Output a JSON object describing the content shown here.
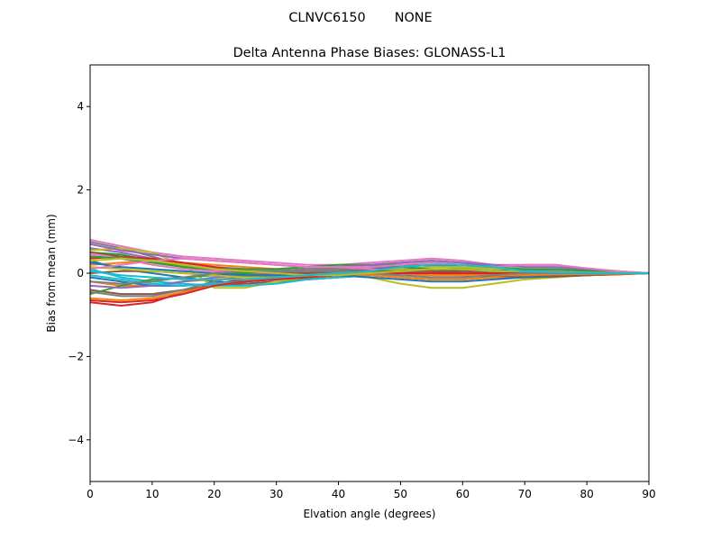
{
  "figure": {
    "suptitle": "CLNVC6150       NONE"
  },
  "chart_data": {
    "type": "line",
    "title": "Delta Antenna Phase Biases: GLONASS-L1",
    "xlabel": "Elvation angle (degrees)",
    "ylabel": "Bias from mean (mm)",
    "xlim": [
      0,
      90
    ],
    "ylim": [
      -5,
      5
    ],
    "xticks": [
      0,
      10,
      20,
      30,
      40,
      50,
      60,
      70,
      80,
      90
    ],
    "yticks": [
      -4,
      -2,
      0,
      2,
      4
    ],
    "ytick_labels": [
      "−4",
      "−2",
      "0",
      "2",
      "4"
    ],
    "grid": false,
    "legend": "none",
    "x": [
      0,
      5,
      10,
      15,
      20,
      25,
      30,
      35,
      40,
      45,
      50,
      55,
      60,
      65,
      70,
      75,
      80,
      85,
      90
    ],
    "series": [
      {
        "color": "#1f77b4",
        "values": [
          0.3,
          0.1,
          0.0,
          -0.1,
          -0.2,
          -0.25,
          -0.2,
          -0.15,
          -0.1,
          -0.05,
          -0.1,
          -0.15,
          -0.15,
          -0.1,
          -0.05,
          0.0,
          0.0,
          0.0,
          0.0
        ]
      },
      {
        "color": "#ff7f0e",
        "values": [
          -0.2,
          -0.3,
          -0.3,
          -0.2,
          -0.15,
          -0.1,
          -0.05,
          0.0,
          0.05,
          0.1,
          0.1,
          0.05,
          0.0,
          -0.05,
          -0.05,
          -0.05,
          -0.05,
          -0.03,
          0.0
        ]
      },
      {
        "color": "#2ca02c",
        "values": [
          0.5,
          0.45,
          0.3,
          0.15,
          0.05,
          0.0,
          0.05,
          0.1,
          0.15,
          0.2,
          0.2,
          0.18,
          0.12,
          0.05,
          0.0,
          -0.02,
          -0.03,
          -0.02,
          0.0
        ]
      },
      {
        "color": "#d62728",
        "values": [
          -0.7,
          -0.78,
          -0.7,
          -0.45,
          -0.25,
          -0.15,
          -0.1,
          -0.05,
          0.0,
          0.05,
          0.05,
          0.05,
          0.0,
          -0.05,
          -0.05,
          -0.05,
          -0.05,
          -0.03,
          0.0
        ]
      },
      {
        "color": "#9467bd",
        "values": [
          0.6,
          0.5,
          0.35,
          0.25,
          0.15,
          0.1,
          0.05,
          0.05,
          0.05,
          0.1,
          0.2,
          0.25,
          0.2,
          0.1,
          0.05,
          0.05,
          0.02,
          0.0,
          0.0
        ]
      },
      {
        "color": "#8c564b",
        "values": [
          -0.4,
          -0.5,
          -0.5,
          -0.4,
          -0.3,
          -0.25,
          -0.2,
          -0.15,
          -0.1,
          -0.05,
          0.0,
          0.0,
          -0.05,
          -0.1,
          -0.1,
          -0.08,
          -0.05,
          -0.02,
          0.0
        ]
      },
      {
        "color": "#e377c2",
        "values": [
          0.8,
          0.65,
          0.5,
          0.4,
          0.35,
          0.3,
          0.25,
          0.2,
          0.2,
          0.25,
          0.3,
          0.35,
          0.3,
          0.2,
          0.2,
          0.2,
          0.1,
          0.05,
          0.0
        ]
      },
      {
        "color": "#7f7f7f",
        "values": [
          0.75,
          0.6,
          0.4,
          0.2,
          0.05,
          -0.05,
          -0.1,
          -0.1,
          -0.05,
          -0.05,
          -0.1,
          -0.15,
          -0.15,
          -0.1,
          -0.05,
          0.0,
          0.0,
          0.0,
          0.0
        ]
      },
      {
        "color": "#bcbd22",
        "values": [
          0.55,
          0.6,
          0.5,
          0.2,
          -0.35,
          -0.35,
          -0.2,
          -0.1,
          -0.05,
          -0.1,
          -0.25,
          -0.35,
          -0.35,
          -0.25,
          -0.15,
          -0.1,
          -0.05,
          -0.02,
          0.0
        ]
      },
      {
        "color": "#17becf",
        "values": [
          0.1,
          -0.1,
          -0.2,
          -0.25,
          -0.3,
          -0.3,
          -0.25,
          -0.15,
          -0.1,
          -0.05,
          -0.05,
          -0.1,
          -0.1,
          -0.05,
          0.0,
          0.0,
          0.0,
          0.0,
          0.0
        ]
      },
      {
        "color": "#1f77b4",
        "values": [
          -0.1,
          -0.2,
          -0.3,
          -0.3,
          -0.25,
          -0.2,
          -0.15,
          -0.1,
          0.0,
          0.1,
          0.15,
          0.2,
          0.15,
          0.1,
          0.05,
          0.05,
          0.03,
          0.01,
          0.0
        ]
      },
      {
        "color": "#ff7f0e",
        "values": [
          0.2,
          0.25,
          0.3,
          0.25,
          0.2,
          0.15,
          0.1,
          0.05,
          0.0,
          -0.05,
          -0.1,
          -0.15,
          -0.15,
          -0.1,
          -0.05,
          -0.05,
          -0.03,
          -0.01,
          0.0
        ]
      },
      {
        "color": "#2ca02c",
        "values": [
          -0.5,
          -0.3,
          -0.15,
          -0.1,
          -0.05,
          0.0,
          0.05,
          0.1,
          0.15,
          0.2,
          0.25,
          0.3,
          0.25,
          0.15,
          0.1,
          0.05,
          0.03,
          0.01,
          0.0
        ]
      },
      {
        "color": "#d62728",
        "values": [
          0.35,
          0.4,
          0.35,
          0.25,
          0.15,
          0.05,
          0.0,
          -0.05,
          -0.05,
          0.0,
          0.0,
          0.0,
          -0.05,
          -0.05,
          -0.05,
          -0.03,
          -0.02,
          -0.01,
          0.0
        ]
      },
      {
        "color": "#9467bd",
        "values": [
          -0.3,
          -0.35,
          -0.3,
          -0.2,
          -0.1,
          -0.05,
          0.0,
          0.05,
          0.1,
          0.15,
          0.1,
          0.05,
          0.0,
          0.0,
          0.05,
          0.05,
          0.03,
          0.01,
          0.0
        ]
      },
      {
        "color": "#8c564b",
        "values": [
          0.0,
          0.05,
          0.05,
          0.0,
          -0.05,
          -0.05,
          -0.05,
          0.0,
          0.05,
          0.1,
          0.1,
          0.05,
          0.0,
          -0.05,
          -0.1,
          -0.08,
          -0.05,
          -0.02,
          0.0
        ]
      },
      {
        "color": "#e377c2",
        "values": [
          0.45,
          0.35,
          0.2,
          0.1,
          0.05,
          0.05,
          0.1,
          0.15,
          0.15,
          0.1,
          0.05,
          0.0,
          0.0,
          0.05,
          0.1,
          0.1,
          0.06,
          0.02,
          0.0
        ]
      },
      {
        "color": "#7f7f7f",
        "values": [
          -0.45,
          -0.55,
          -0.55,
          -0.4,
          -0.2,
          -0.05,
          0.05,
          0.1,
          0.1,
          0.05,
          0.0,
          -0.05,
          -0.05,
          -0.05,
          -0.05,
          -0.03,
          -0.02,
          -0.01,
          0.0
        ]
      },
      {
        "color": "#bcbd22",
        "values": [
          0.15,
          0.1,
          0.05,
          0.0,
          -0.05,
          -0.1,
          -0.1,
          -0.05,
          0.0,
          0.05,
          0.1,
          0.15,
          0.15,
          0.1,
          0.05,
          0.03,
          0.02,
          0.01,
          0.0
        ]
      },
      {
        "color": "#17becf",
        "values": [
          -0.05,
          -0.15,
          -0.25,
          -0.3,
          -0.25,
          -0.2,
          -0.15,
          -0.1,
          -0.05,
          0.0,
          0.05,
          0.1,
          0.1,
          0.05,
          0.0,
          -0.02,
          -0.02,
          -0.01,
          0.0
        ]
      },
      {
        "color": "#1f77b4",
        "values": [
          0.25,
          0.15,
          0.1,
          0.05,
          0.0,
          -0.05,
          -0.05,
          -0.05,
          -0.05,
          -0.1,
          -0.15,
          -0.2,
          -0.2,
          -0.15,
          -0.1,
          -0.05,
          -0.03,
          -0.01,
          0.0
        ]
      },
      {
        "color": "#ff7f0e",
        "values": [
          -0.6,
          -0.65,
          -0.6,
          -0.45,
          -0.3,
          -0.2,
          -0.1,
          -0.05,
          0.0,
          0.0,
          -0.05,
          -0.05,
          -0.05,
          -0.05,
          -0.05,
          -0.03,
          -0.02,
          -0.01,
          0.0
        ]
      },
      {
        "color": "#2ca02c",
        "values": [
          0.4,
          0.35,
          0.25,
          0.15,
          0.1,
          0.1,
          0.1,
          0.15,
          0.2,
          0.2,
          0.15,
          0.1,
          0.05,
          0.05,
          0.1,
          0.1,
          0.06,
          0.02,
          0.0
        ]
      },
      {
        "color": "#d62728",
        "values": [
          -0.65,
          -0.7,
          -0.65,
          -0.5,
          -0.3,
          -0.2,
          -0.15,
          -0.1,
          -0.05,
          0.0,
          0.0,
          0.0,
          0.0,
          0.0,
          0.0,
          0.0,
          0.0,
          0.0,
          0.0
        ]
      },
      {
        "color": "#9467bd",
        "values": [
          0.7,
          0.55,
          0.45,
          0.35,
          0.3,
          0.25,
          0.2,
          0.15,
          0.15,
          0.2,
          0.25,
          0.3,
          0.25,
          0.2,
          0.15,
          0.15,
          0.1,
          0.05,
          0.0
        ]
      },
      {
        "color": "#8c564b",
        "values": [
          0.5,
          0.4,
          0.3,
          0.2,
          0.1,
          0.05,
          0.0,
          0.0,
          0.05,
          0.05,
          0.05,
          0.05,
          0.05,
          0.05,
          0.05,
          0.03,
          0.02,
          0.01,
          0.0
        ]
      },
      {
        "color": "#e377c2",
        "values": [
          0.1,
          0.2,
          0.3,
          0.35,
          0.3,
          0.25,
          0.2,
          0.15,
          0.15,
          0.15,
          0.2,
          0.25,
          0.2,
          0.15,
          0.2,
          0.2,
          0.12,
          0.05,
          0.0
        ]
      },
      {
        "color": "#7f7f7f",
        "values": [
          -0.2,
          -0.25,
          -0.2,
          -0.1,
          0.0,
          0.05,
          0.05,
          0.05,
          0.05,
          0.0,
          -0.05,
          -0.1,
          -0.1,
          -0.05,
          0.0,
          0.0,
          0.0,
          0.0,
          0.0
        ]
      },
      {
        "color": "#bcbd22",
        "values": [
          0.3,
          0.35,
          0.3,
          0.2,
          0.1,
          0.05,
          0.0,
          -0.05,
          -0.05,
          0.0,
          0.05,
          0.1,
          0.1,
          0.05,
          0.05,
          0.03,
          0.02,
          0.01,
          0.0
        ]
      },
      {
        "color": "#17becf",
        "values": [
          0.05,
          -0.05,
          -0.1,
          -0.15,
          -0.15,
          -0.15,
          -0.1,
          -0.05,
          0.0,
          0.05,
          0.15,
          0.2,
          0.2,
          0.15,
          0.05,
          0.02,
          0.01,
          0.0,
          0.0
        ]
      }
    ]
  }
}
